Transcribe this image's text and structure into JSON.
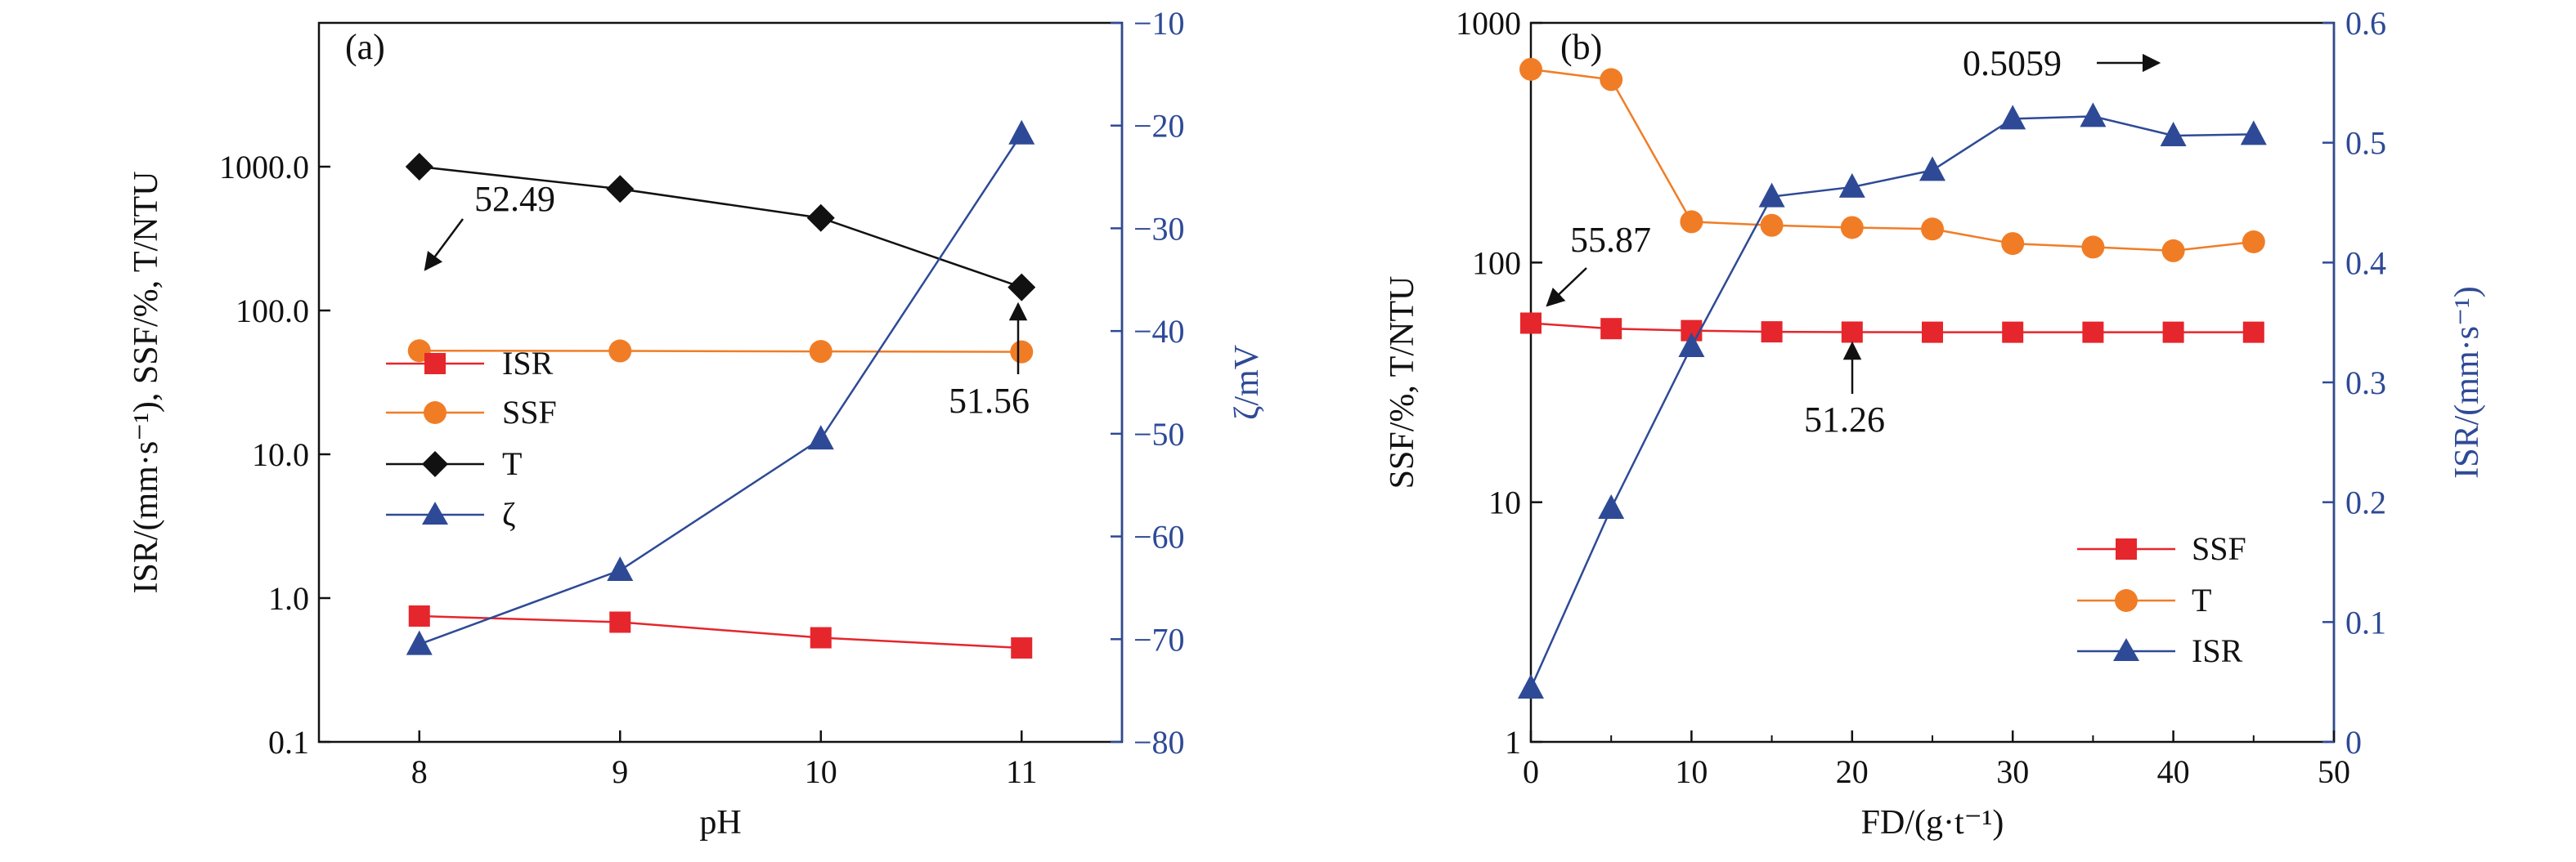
{
  "colors": {
    "isr": "#e5262c",
    "ssf": "#f07d26",
    "t": "#111111",
    "zeta": "#2e4a96",
    "axis_right": "#2e4a96"
  },
  "chart_data": [
    {
      "panel_label": "(a)",
      "type": "line",
      "xlabel": "pH",
      "ylabel_left": "ISR/(mm·s⁻¹), SSF/%, T/NTU",
      "ylabel_right": "ζ/mV",
      "x_ticks": [
        "8",
        "9",
        "10",
        "11"
      ],
      "xlim": [
        7.5,
        11.5
      ],
      "ylim_left": [
        0.1,
        10000
      ],
      "y_scale_left": "log",
      "y_ticks_left": [
        "0.1",
        "1.0",
        "10.0",
        "100.0",
        "1000.0"
      ],
      "ylim_right": [
        -80,
        -10
      ],
      "y_ticks_right": [
        "−80",
        "−70",
        "−60",
        "−50",
        "−40",
        "−30",
        "−20",
        "−10"
      ],
      "legend_position": "center-left",
      "series": [
        {
          "name": "ISR",
          "axis": "left",
          "marker": "square",
          "color_key": "isr",
          "x": [
            8,
            9,
            10,
            11
          ],
          "y": [
            0.75,
            0.68,
            0.53,
            0.45
          ]
        },
        {
          "name": "SSF",
          "axis": "left",
          "marker": "circle",
          "color_key": "ssf",
          "x": [
            8,
            9,
            10,
            11
          ],
          "y": [
            52.49,
            52.3,
            51.9,
            51.56
          ]
        },
        {
          "name": "T",
          "axis": "left",
          "marker": "diamond",
          "color_key": "t",
          "x": [
            8,
            9,
            10,
            11
          ],
          "y": [
            1000,
            700,
            440,
            145
          ]
        },
        {
          "name": "ζ",
          "axis": "right",
          "marker": "triangle",
          "color_key": "zeta",
          "x": [
            8,
            9,
            10,
            11
          ],
          "y": [
            -70.5,
            -63.3,
            -50.5,
            -20.8
          ]
        }
      ],
      "annotations": [
        {
          "text": "52.49",
          "x": 8,
          "y": 52.49
        },
        {
          "text": "51.56",
          "x": 11,
          "y": 51.56
        }
      ]
    },
    {
      "panel_label": "(b)",
      "type": "line",
      "xlabel": "FD/(g·t⁻¹)",
      "ylabel_left": "SSF/%, T/NTU",
      "ylabel_right": "ISR/(mm·s⁻¹)",
      "x_ticks": [
        "0",
        "10",
        "20",
        "30",
        "40",
        "50"
      ],
      "xlim": [
        0,
        50
      ],
      "ylim_left": [
        1,
        1000
      ],
      "y_scale_left": "log",
      "y_ticks_left": [
        "1",
        "10",
        "100",
        "1000"
      ],
      "ylim_right": [
        0,
        0.6
      ],
      "y_ticks_right": [
        "0",
        "0.1",
        "0.2",
        "0.3",
        "0.4",
        "0.5",
        "0.6"
      ],
      "legend_position": "bottom-right",
      "series": [
        {
          "name": "SSF",
          "axis": "left",
          "marker": "square",
          "color_key": "isr",
          "x": [
            0,
            5,
            10,
            15,
            20,
            25,
            30,
            35,
            40,
            45
          ],
          "y": [
            55.87,
            53,
            52,
            51.4,
            51.26,
            51.2,
            51.2,
            51.2,
            51.2,
            51.2
          ]
        },
        {
          "name": "T",
          "axis": "left",
          "marker": "circle",
          "color_key": "ssf",
          "x": [
            0,
            5,
            10,
            15,
            20,
            25,
            30,
            35,
            40,
            45
          ],
          "y": [
            640,
            580,
            148,
            143,
            140,
            138,
            120,
            116,
            112,
            122
          ]
        },
        {
          "name": "ISR",
          "axis": "right",
          "marker": "triangle",
          "color_key": "zeta",
          "x": [
            0,
            5,
            10,
            15,
            20,
            25,
            30,
            35,
            40,
            45
          ],
          "y": [
            0.045,
            0.195,
            0.33,
            0.455,
            0.463,
            0.477,
            0.52,
            0.522,
            0.5059,
            0.507
          ]
        }
      ],
      "annotations": [
        {
          "text": "55.87",
          "x": 0,
          "y": 55.87
        },
        {
          "text": "51.26",
          "x": 20,
          "y": 51.26
        },
        {
          "text": "0.5059",
          "x": 40,
          "y": 0.5059
        }
      ]
    }
  ]
}
